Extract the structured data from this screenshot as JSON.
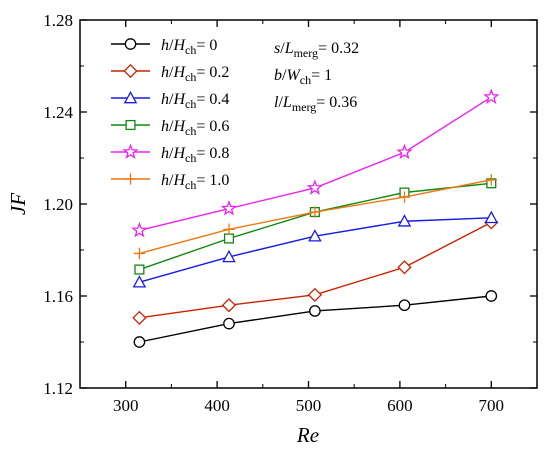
{
  "chart_data": {
    "type": "line",
    "xlabel": "Re",
    "ylabel": "JF",
    "xlim": [
      250,
      750
    ],
    "ylim": [
      1.12,
      1.28
    ],
    "xticks": [
      "300",
      "400",
      "500",
      "600",
      "700"
    ],
    "yticks": [
      "1.12",
      "1.16",
      "1.20",
      "1.24",
      "1.28"
    ],
    "x": [
      315,
      413,
      507,
      605,
      700
    ],
    "legend_position": "top-left",
    "series": [
      {
        "name": "h/Hch= 0",
        "var": "h",
        "sub": "ch",
        "val": "= 0",
        "color": "#000000",
        "marker": "circle",
        "values": [
          1.14,
          1.148,
          1.1535,
          1.156,
          1.16
        ]
      },
      {
        "name": "h/Hch= 0.2",
        "var": "h",
        "sub": "ch",
        "val": "= 0.2",
        "color": "#cc2200",
        "marker": "diamond",
        "values": [
          1.1505,
          1.156,
          1.1605,
          1.1725,
          1.192
        ]
      },
      {
        "name": "h/Hch= 0.4",
        "var": "h",
        "sub": "ch",
        "val": "= 0.4",
        "color": "#1a1ae6",
        "marker": "triangle",
        "values": [
          1.166,
          1.177,
          1.186,
          1.1925,
          1.194
        ]
      },
      {
        "name": "h/Hch= 0.6",
        "var": "h",
        "sub": "ch",
        "val": "= 0.6",
        "color": "#118811",
        "marker": "square",
        "values": [
          1.1715,
          1.185,
          1.1965,
          1.205,
          1.209
        ]
      },
      {
        "name": "h/Hch= 0.8",
        "var": "h",
        "sub": "ch",
        "val": "= 0.8",
        "color": "#ee22ee",
        "marker": "star",
        "values": [
          1.1885,
          1.198,
          1.207,
          1.2225,
          1.2465
        ]
      },
      {
        "name": "h/Hch= 1.0",
        "var": "h",
        "sub": "ch",
        "val": "= 1.0",
        "color": "#ee7711",
        "marker": "plus",
        "values": [
          1.1785,
          1.189,
          1.1965,
          1.203,
          1.2105
        ]
      }
    ],
    "annotations": [
      {
        "text": "s/Lmerg= 0.32",
        "var": "s",
        "den": "L",
        "sub": "merg",
        "val": "= 0.32"
      },
      {
        "text": "b/Wch= 1",
        "var": "b",
        "den": "W",
        "sub": "ch",
        "val": "= 1"
      },
      {
        "text": "l/Lmerg= 0.36",
        "var": "l",
        "den": "L",
        "sub": "merg",
        "val": "= 0.36"
      }
    ]
  }
}
